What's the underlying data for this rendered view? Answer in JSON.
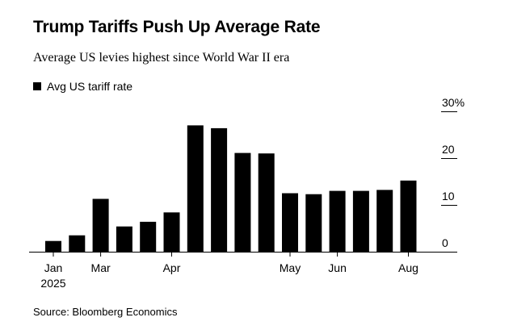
{
  "chart_data": {
    "type": "bar",
    "title": "Trump Tariffs Push Up Average Rate",
    "subtitle": "Average US levies highest since World War II era",
    "legend": {
      "label": "Avg US tariff rate",
      "color": "#000000",
      "placement": "top-left"
    },
    "series": [
      {
        "name": "Avg US tariff rate",
        "values": [
          2.3,
          3.5,
          11.3,
          5.4,
          6.4,
          8.4,
          27.0,
          26.4,
          21.1,
          21.0,
          12.5,
          12.3,
          13.0,
          13.0,
          13.2,
          15.2
        ]
      }
    ],
    "x_tick_labels": [
      {
        "label": "Jan",
        "bar_index": 0,
        "year": "2025"
      },
      {
        "label": "Mar",
        "bar_index": 2
      },
      {
        "label": "Apr",
        "bar_index": 5
      },
      {
        "label": "May",
        "bar_index": 10
      },
      {
        "label": "Jun",
        "bar_index": 12
      },
      {
        "label": "Aug",
        "bar_index": 15
      }
    ],
    "y_ticks": [
      {
        "value": 0,
        "label": "0"
      },
      {
        "value": 10,
        "label": "10"
      },
      {
        "value": 20,
        "label": "20"
      },
      {
        "value": 30,
        "label": "30%"
      }
    ],
    "ylim": [
      0,
      30
    ],
    "y_axis_side": "right",
    "grid": false,
    "xlabel": "",
    "ylabel": "",
    "source": "Source: Bloomberg Economics"
  }
}
